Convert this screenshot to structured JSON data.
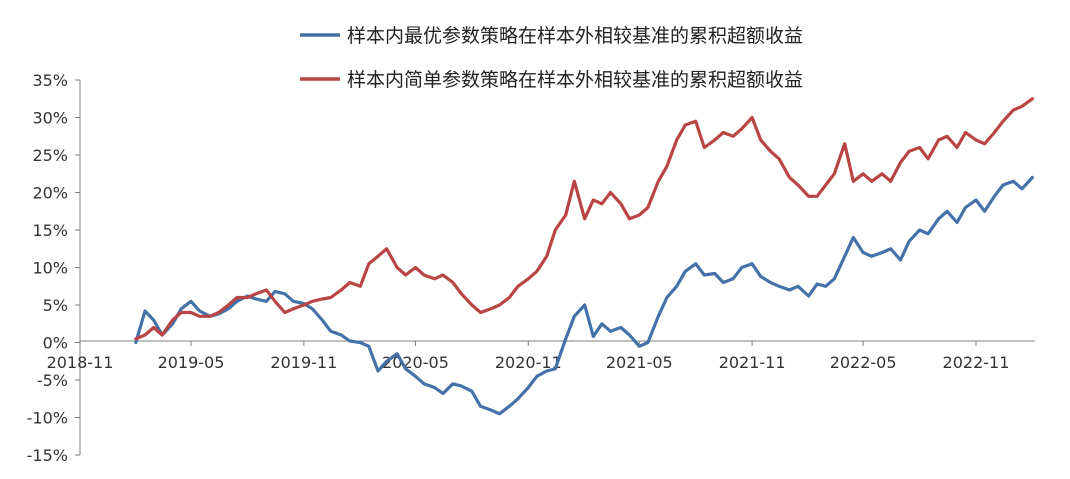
{
  "chart_data": {
    "type": "line",
    "title": "",
    "xlabel": "",
    "ylabel": "",
    "x_ticks": [
      "2018-11",
      "2019-05",
      "2019-11",
      "2020-05",
      "2020-11",
      "2021-05",
      "2021-11",
      "2022-05",
      "2022-11"
    ],
    "y_ticks": [
      "35%",
      "30%",
      "25%",
      "20%",
      "15%",
      "10%",
      "5%",
      "0%",
      "-5%",
      "-10%",
      "-15%"
    ],
    "ylim": [
      -15,
      35
    ],
    "y_unit": "%",
    "legend_position": "top",
    "grid": false,
    "x": [
      "2019-01-31",
      "2019-02-15",
      "2019-03-01",
      "2019-03-15",
      "2019-04-01",
      "2019-04-15",
      "2019-05-01",
      "2019-05-15",
      "2019-06-01",
      "2019-06-15",
      "2019-07-01",
      "2019-07-15",
      "2019-08-01",
      "2019-08-15",
      "2019-09-01",
      "2019-09-15",
      "2019-10-01",
      "2019-10-15",
      "2019-11-01",
      "2019-11-15",
      "2019-12-01",
      "2019-12-15",
      "2020-01-01",
      "2020-01-15",
      "2020-02-01",
      "2020-02-15",
      "2020-03-01",
      "2020-03-15",
      "2020-04-01",
      "2020-04-15",
      "2020-05-01",
      "2020-05-15",
      "2020-06-01",
      "2020-06-15",
      "2020-07-01",
      "2020-07-15",
      "2020-08-01",
      "2020-08-15",
      "2020-09-01",
      "2020-09-15",
      "2020-10-01",
      "2020-10-15",
      "2020-11-01",
      "2020-11-15",
      "2020-12-01",
      "2020-12-15",
      "2021-01-01",
      "2021-01-15",
      "2021-02-01",
      "2021-02-15",
      "2021-03-01",
      "2021-03-15",
      "2021-04-01",
      "2021-04-15",
      "2021-05-01",
      "2021-05-15",
      "2021-06-01",
      "2021-06-15",
      "2021-07-01",
      "2021-07-15",
      "2021-08-01",
      "2021-08-15",
      "2021-09-01",
      "2021-09-15",
      "2021-10-01",
      "2021-10-15",
      "2021-11-01",
      "2021-11-15",
      "2021-12-01",
      "2021-12-15",
      "2022-01-01",
      "2022-01-15",
      "2022-02-01",
      "2022-02-15",
      "2022-03-01",
      "2022-03-15",
      "2022-04-01",
      "2022-04-15",
      "2022-05-01",
      "2022-05-15",
      "2022-06-01",
      "2022-06-15",
      "2022-07-01",
      "2022-07-15",
      "2022-08-01",
      "2022-08-15",
      "2022-09-01",
      "2022-09-15",
      "2022-10-01",
      "2022-10-15",
      "2022-11-01",
      "2022-11-15",
      "2022-12-01",
      "2022-12-15",
      "2023-01-01",
      "2023-01-15",
      "2023-02-01"
    ],
    "series": [
      {
        "name": "样本内最优参数策略在样本外相较基准的累积超额收益",
        "color": "#4472A8",
        "values": [
          0.0,
          4.2,
          3.0,
          1.0,
          2.5,
          4.5,
          5.5,
          4.2,
          3.5,
          3.8,
          4.5,
          5.5,
          6.2,
          5.8,
          5.5,
          6.8,
          6.5,
          5.5,
          5.2,
          4.5,
          3.0,
          1.5,
          1.0,
          0.2,
          0.0,
          -0.5,
          -3.8,
          -2.5,
          -1.5,
          -3.5,
          -4.5,
          -5.5,
          -6.0,
          -6.8,
          -5.5,
          -5.8,
          -6.5,
          -8.5,
          -9.0,
          -9.5,
          -8.5,
          -7.5,
          -6.0,
          -4.5,
          -3.8,
          -3.5,
          0.5,
          3.5,
          5.0,
          0.8,
          2.5,
          1.5,
          2.0,
          1.0,
          -0.5,
          0.0,
          3.5,
          6.0,
          7.5,
          9.5,
          10.5,
          9.0,
          9.2,
          8.0,
          8.5,
          10.0,
          10.5,
          8.8,
          8.0,
          7.5,
          7.0,
          7.5,
          6.2,
          7.8,
          7.5,
          8.5,
          11.5,
          14.0,
          12.0,
          11.5,
          12.0,
          12.5,
          11.0,
          13.5,
          15.0,
          14.5,
          16.5,
          17.5,
          16.0,
          18.0,
          19.0,
          17.5,
          19.5,
          21.0,
          21.5,
          20.5,
          22.0
        ]
      },
      {
        "name": "样本内简单参数策略在样本外相较基准的累积超额收益",
        "color": "#B94444",
        "values": [
          0.5,
          1.0,
          2.0,
          1.0,
          3.0,
          4.0,
          4.0,
          3.5,
          3.5,
          4.0,
          5.0,
          6.0,
          6.0,
          6.5,
          7.0,
          5.5,
          4.0,
          4.5,
          5.0,
          5.5,
          5.8,
          6.0,
          7.0,
          8.0,
          7.5,
          10.5,
          11.5,
          12.5,
          10.0,
          9.0,
          10.0,
          9.0,
          8.5,
          9.0,
          8.0,
          6.5,
          5.0,
          4.0,
          4.5,
          5.0,
          6.0,
          7.5,
          8.5,
          9.5,
          11.5,
          15.0,
          17.0,
          21.5,
          16.5,
          19.0,
          18.5,
          20.0,
          18.5,
          16.5,
          17.0,
          18.0,
          21.5,
          23.5,
          27.0,
          29.0,
          29.5,
          26.0,
          27.0,
          28.0,
          27.5,
          28.5,
          30.0,
          27.0,
          25.5,
          24.5,
          22.0,
          21.0,
          19.5,
          19.5,
          21.0,
          22.5,
          26.5,
          21.5,
          22.5,
          21.5,
          22.5,
          21.5,
          24.0,
          25.5,
          26.0,
          24.5,
          27.0,
          27.5,
          26.0,
          28.0,
          27.0,
          26.5,
          28.0,
          29.5,
          31.0,
          31.5,
          32.5
        ]
      }
    ]
  }
}
